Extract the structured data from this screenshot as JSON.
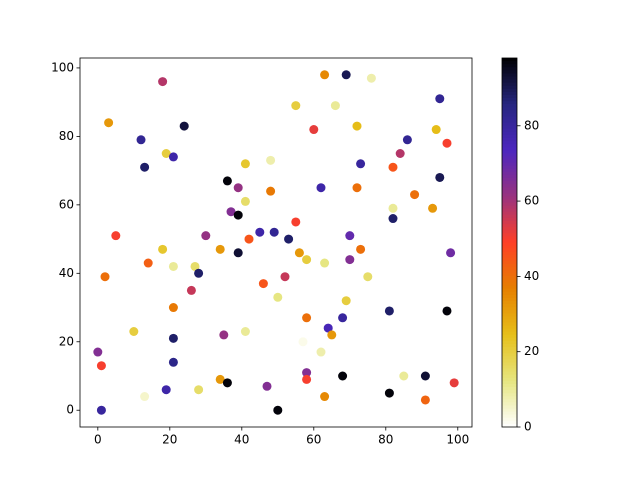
{
  "chart_data": {
    "type": "scatter",
    "colormap": "CMRmap_r",
    "x": [
      18,
      63,
      69,
      76,
      3,
      24,
      12,
      19,
      21,
      13,
      55,
      66,
      95,
      60,
      72,
      94,
      97,
      84,
      86,
      73,
      41,
      48,
      36,
      39,
      48,
      62,
      72,
      82,
      88,
      41,
      37,
      39,
      55,
      82,
      93,
      95,
      82,
      5,
      30,
      42,
      45,
      49,
      53,
      70,
      18,
      34,
      39,
      56,
      58,
      73,
      70,
      98,
      14,
      21,
      27,
      28,
      63,
      2,
      52,
      75,
      46,
      26,
      50,
      69,
      21,
      58,
      68,
      64,
      81,
      97,
      10,
      35,
      41,
      65,
      21,
      0,
      57,
      62,
      1,
      21,
      58,
      68,
      85,
      91,
      58,
      34,
      36,
      99,
      19,
      28,
      47,
      13,
      63,
      81,
      91,
      1,
      50
    ],
    "y": [
      96,
      98,
      98,
      97,
      84,
      83,
      79,
      75,
      74,
      71,
      89,
      89,
      91,
      82,
      83,
      82,
      78,
      75,
      79,
      72,
      72,
      73,
      67,
      65,
      64,
      65,
      65,
      71,
      63,
      61,
      58,
      57,
      55,
      59,
      59,
      68,
      56,
      51,
      51,
      50,
      52,
      52,
      50,
      51,
      47,
      47,
      46,
      46,
      44,
      47,
      44,
      46,
      43,
      42,
      42,
      40,
      43,
      39,
      39,
      39,
      37,
      35,
      33,
      32,
      30,
      27,
      27,
      24,
      29,
      29,
      23,
      22,
      23,
      22,
      21,
      17,
      20,
      17,
      13,
      14,
      11,
      10,
      10,
      10,
      9,
      9,
      8,
      8,
      6,
      6,
      7,
      4,
      4,
      5,
      3,
      0,
      0
    ],
    "c": [
      58,
      35,
      90,
      8,
      32,
      92,
      82,
      20,
      78,
      88,
      20,
      10,
      82,
      52,
      25,
      25,
      50,
      58,
      82,
      80,
      22,
      8,
      97,
      62,
      38,
      78,
      40,
      45,
      40,
      15,
      65,
      97,
      50,
      10,
      32,
      90,
      88,
      50,
      62,
      45,
      78,
      82,
      88,
      70,
      22,
      32,
      93,
      32,
      20,
      40,
      65,
      68,
      43,
      10,
      15,
      88,
      12,
      40,
      56,
      15,
      45,
      56,
      12,
      20,
      38,
      40,
      80,
      75,
      88,
      97,
      20,
      62,
      10,
      32,
      88,
      65,
      2,
      8,
      50,
      84,
      65,
      97,
      10,
      93,
      50,
      32,
      97,
      52,
      78,
      15,
      65,
      5,
      35,
      97,
      42,
      80,
      97
    ],
    "xlim": [
      -4.95,
      103.95
    ],
    "ylim": [
      -4.9,
      102.9
    ],
    "clim": [
      0,
      98
    ],
    "xticks": [
      0,
      20,
      40,
      60,
      80,
      100
    ],
    "yticks": [
      0,
      20,
      40,
      60,
      80,
      100
    ],
    "cticks": [
      0,
      20,
      40,
      60,
      80
    ]
  }
}
